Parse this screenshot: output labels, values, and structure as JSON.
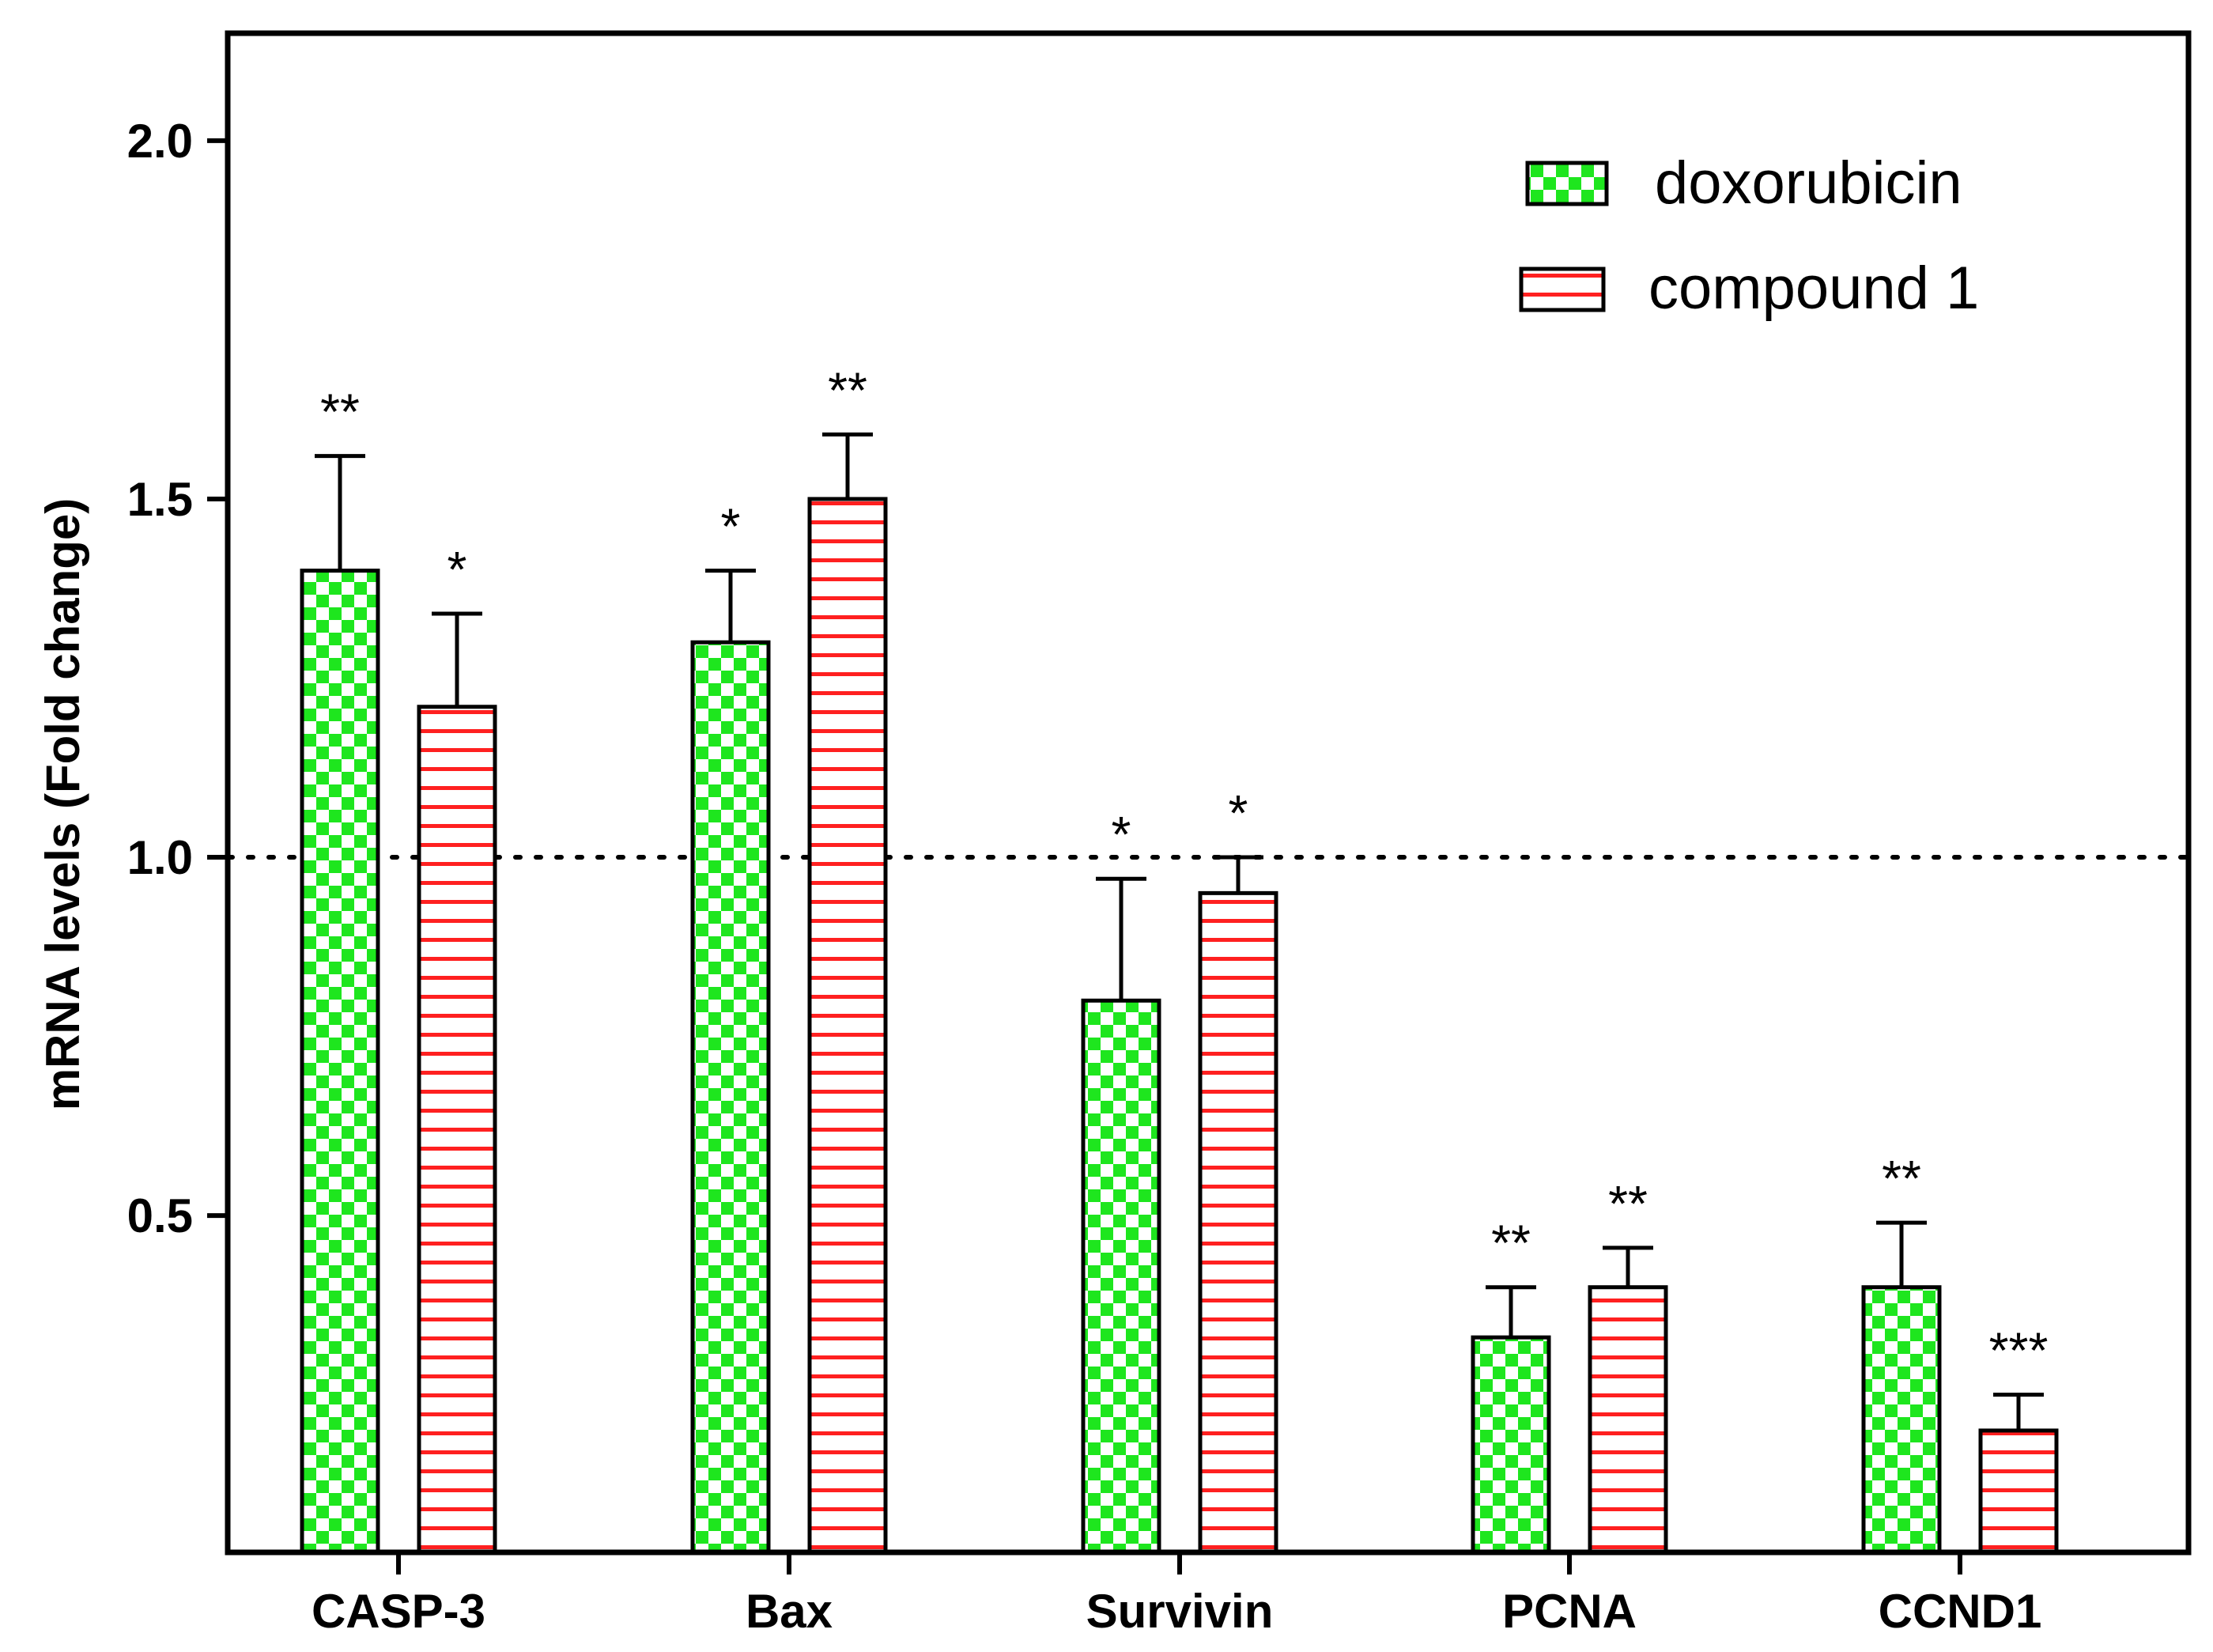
{
  "chart_data": {
    "type": "bar",
    "title": "",
    "xlabel": "",
    "ylabel": "mRNA levels (Fold change)",
    "ylim": [
      0.03,
      2.15
    ],
    "yticks": [
      {
        "value": 0.5,
        "label": "0.5"
      },
      {
        "value": 1.0,
        "label": "1.0"
      },
      {
        "value": 1.5,
        "label": "1.5"
      },
      {
        "value": 2.0,
        "label": "2.0"
      }
    ],
    "reference_line": 1.0,
    "grid": false,
    "legend_position": "top-right",
    "categories": [
      "CASP-3",
      "Bax",
      "Survivin",
      "PCNA",
      "CCND1"
    ],
    "series": [
      {
        "name": "doxorubicin",
        "pattern": "checkerboard",
        "color": "#1ee61e",
        "values": [
          1.4,
          1.3,
          0.8,
          0.33,
          0.4
        ],
        "errors": [
          0.16,
          0.1,
          0.17,
          0.07,
          0.09
        ],
        "significance": [
          "**",
          "*",
          "*",
          "**",
          "**"
        ]
      },
      {
        "name": "compound 1",
        "pattern": "horizontal-stripes",
        "color": "#ff2020",
        "values": [
          1.21,
          1.5,
          0.95,
          0.4,
          0.2
        ],
        "errors": [
          0.13,
          0.09,
          0.05,
          0.055,
          0.05
        ],
        "significance": [
          "*",
          "**",
          "*",
          "**",
          "***"
        ]
      }
    ]
  }
}
